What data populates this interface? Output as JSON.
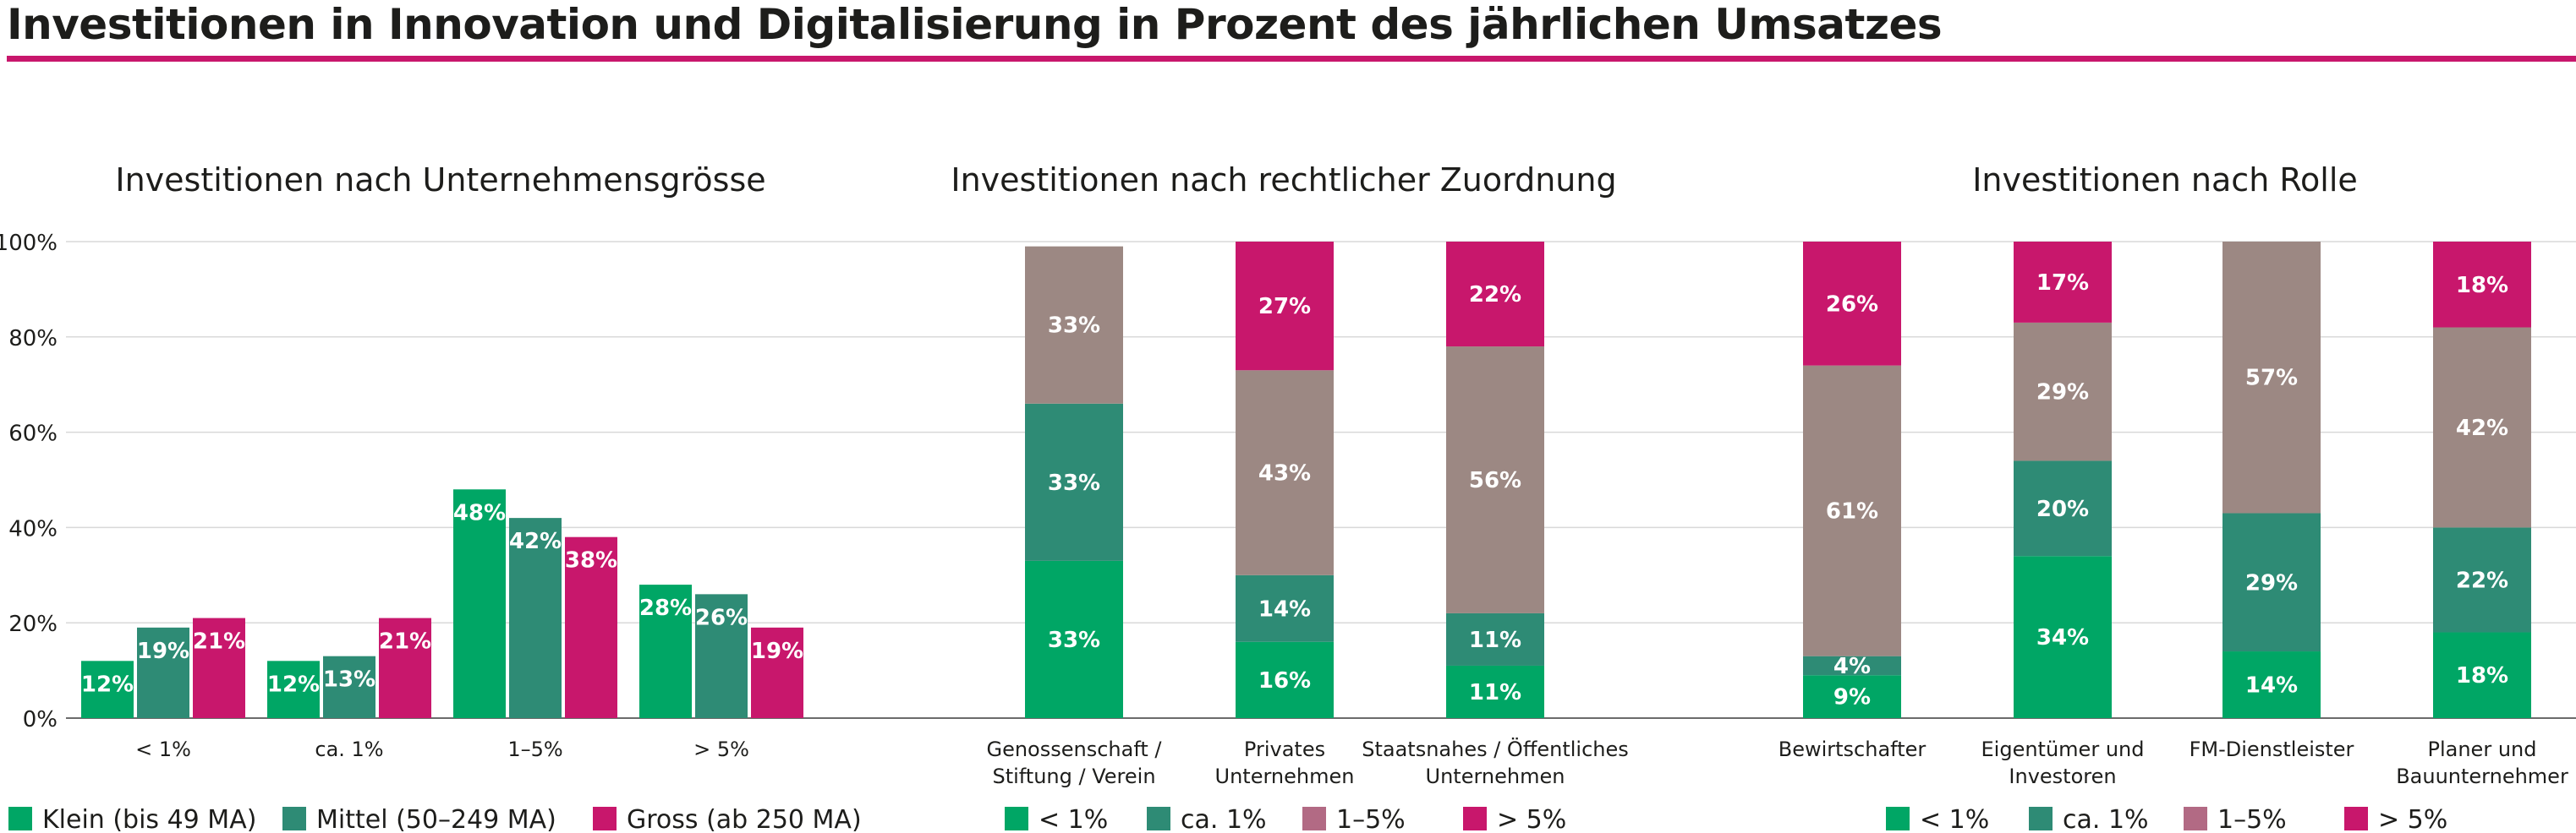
{
  "title": "Investitionen in Innovation und Digitalisierung in Prozent des jährlichen Umsatzes",
  "colors": {
    "green": "#00a665",
    "teal": "#2e8b75",
    "magenta": "#c8176c",
    "taupe": "#9c8883",
    "legend_taupe": "#b26a84",
    "grid": "#d9d9d9",
    "axis": "#6b6b6b",
    "text": "#1d1d1b",
    "label": "#ffffff"
  },
  "chart_data": [
    {
      "type": "bar",
      "title": "Investitionen nach Unternehmensgrösse",
      "categories": [
        "< 1%",
        "ca. 1%",
        "1–5%",
        "> 5%"
      ],
      "series": [
        {
          "name": "Klein (bis 49 MA)",
          "values": [
            12,
            12,
            48,
            28
          ],
          "labels": [
            "12%",
            "12%",
            "48%",
            "28%"
          ],
          "color": "#00a665"
        },
        {
          "name": "Mittel (50–249 MA)",
          "values": [
            19,
            13,
            42,
            26
          ],
          "labels": [
            "19%",
            "13%",
            "42%",
            "26%"
          ],
          "color": "#2e8b75"
        },
        {
          "name": "Gross (ab 250 MA)",
          "values": [
            21,
            21,
            38,
            19
          ],
          "labels": [
            "21%",
            "21%",
            "38%",
            "19%"
          ],
          "color": "#c8176c"
        }
      ],
      "ylim": [
        0,
        100
      ],
      "yticks": [
        "0%",
        "20%",
        "40%",
        "60%",
        "80%",
        "100%"
      ],
      "grid": true,
      "legend_position": "bottom"
    },
    {
      "type": "bar",
      "stacked": true,
      "title": "Investitionen nach rechtlicher Zuordnung",
      "categories": [
        [
          "Genossenschaft /",
          "Stiftung / Verein"
        ],
        [
          "Privates",
          "Unternehmen"
        ],
        [
          "Staatsnahes / Öffentliches",
          "Unternehmen"
        ]
      ],
      "series": [
        {
          "name": "< 1%",
          "values": [
            33,
            16,
            11
          ],
          "labels": [
            "33%",
            "16%",
            "11%"
          ],
          "color": "#00a665"
        },
        {
          "name": "ca. 1%",
          "values": [
            33,
            14,
            11
          ],
          "labels": [
            "33%",
            "14%",
            "11%"
          ],
          "color": "#2e8b75"
        },
        {
          "name": "1–5%",
          "values": [
            33,
            43,
            56
          ],
          "labels": [
            "33%",
            "43%",
            "56%"
          ],
          "color": "#9c8883"
        },
        {
          "name": "> 5%",
          "values": [
            0,
            27,
            22
          ],
          "labels": [
            "",
            "27%",
            "22%"
          ],
          "color": "#c8176c"
        }
      ],
      "ylim": [
        0,
        100
      ],
      "grid": true,
      "legend_position": "bottom"
    },
    {
      "type": "bar",
      "stacked": true,
      "title": "Investitionen nach Rolle",
      "categories": [
        [
          "Bewirtschafter"
        ],
        [
          "Eigentümer und",
          "Investoren"
        ],
        [
          "FM-Dienstleister"
        ],
        [
          "Planer und",
          "Bauunternehmer"
        ]
      ],
      "series": [
        {
          "name": "< 1%",
          "values": [
            9,
            34,
            14,
            18
          ],
          "labels": [
            "9%",
            "34%",
            "14%",
            "18%"
          ],
          "color": "#00a665"
        },
        {
          "name": "ca. 1%",
          "values": [
            4,
            20,
            29,
            22
          ],
          "labels": [
            "4%",
            "20%",
            "29%",
            "22%"
          ],
          "color": "#2e8b75"
        },
        {
          "name": "1–5%",
          "values": [
            61,
            29,
            57,
            42
          ],
          "labels": [
            "61%",
            "29%",
            "57%",
            "42%"
          ],
          "color": "#9c8883"
        },
        {
          "name": "> 5%",
          "values": [
            26,
            17,
            0,
            18
          ],
          "labels": [
            "26%",
            "17%",
            "",
            "18%"
          ],
          "color": "#c8176c"
        }
      ],
      "ylim": [
        0,
        100
      ],
      "grid": true,
      "legend_position": "bottom"
    }
  ]
}
